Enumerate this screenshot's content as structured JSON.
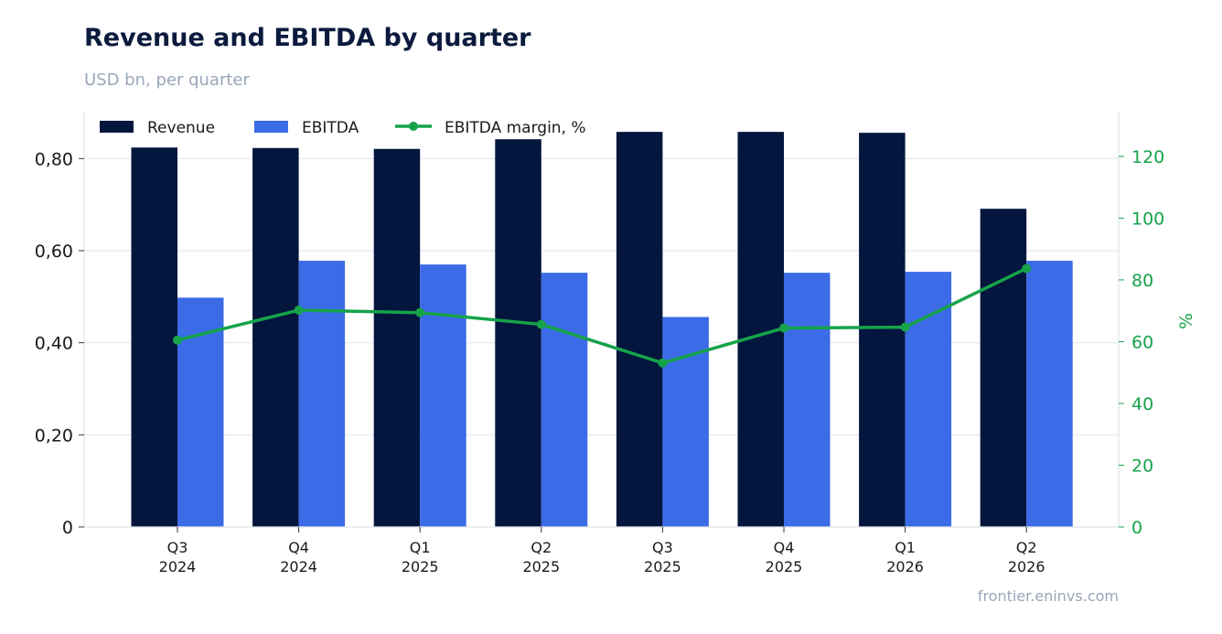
{
  "chart_data": {
    "type": "bar",
    "title": "Revenue and EBITDA by quarter",
    "subtitle": "USD bn, per quarter",
    "source": "frontier.eninvs.com",
    "categories": [
      [
        "Q3",
        "2024"
      ],
      [
        "Q4",
        "2024"
      ],
      [
        "Q1",
        "2025"
      ],
      [
        "Q2",
        "2025"
      ],
      [
        "Q3",
        "2025"
      ],
      [
        "Q4",
        "2025"
      ],
      [
        "Q1",
        "2026"
      ],
      [
        "Q2",
        "2026"
      ]
    ],
    "series": [
      {
        "name": "Revenue",
        "type": "bar",
        "axis": "left",
        "color": "#04163d",
        "values": [
          0.824,
          0.823,
          0.821,
          0.842,
          0.858,
          0.858,
          0.856,
          0.691
        ]
      },
      {
        "name": "EBITDA",
        "type": "bar",
        "axis": "left",
        "color": "#3b6be6",
        "values": [
          0.498,
          0.578,
          0.57,
          0.552,
          0.456,
          0.552,
          0.554,
          0.578
        ]
      },
      {
        "name": "EBITDA margin, %",
        "type": "line",
        "axis": "right",
        "color": "#16a34a",
        "values": [
          60.5,
          70.2,
          69.4,
          65.6,
          53.1,
          64.4,
          64.7,
          83.7
        ]
      }
    ],
    "y_left": {
      "min": 0,
      "max": 0.9,
      "ticks": [
        0,
        0.2,
        0.4,
        0.6,
        0.8
      ],
      "tick_labels": [
        "0",
        "0,20",
        "0,40",
        "0,60",
        "0,80"
      ]
    },
    "y_right": {
      "min": 0,
      "max": 134.2,
      "ticks": [
        0,
        20,
        40,
        60,
        80,
        100,
        120
      ],
      "tick_labels": [
        "0",
        "20",
        "40",
        "60",
        "80",
        "100",
        "120"
      ],
      "label": "%"
    },
    "grid": "horizontal",
    "legend": "top-left",
    "colors": {
      "grid": "#e3e7ef",
      "axis": "#dfe3ea",
      "right_axis": "#16a34a"
    }
  }
}
